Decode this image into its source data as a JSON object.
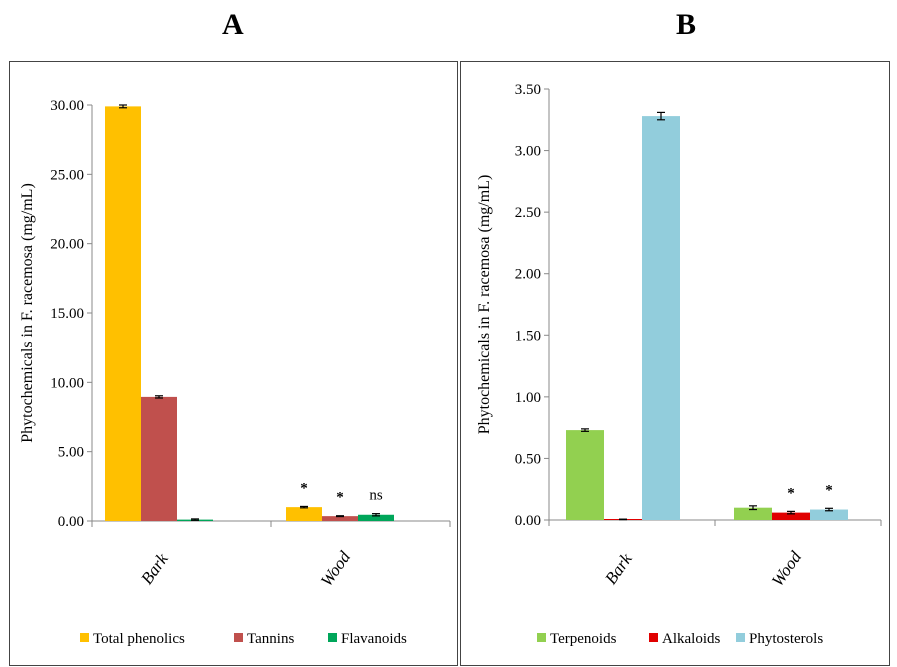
{
  "chart_data": [
    {
      "type": "bar",
      "panel_label": "A",
      "ylabel": "Phytochemicals  in  F. racemosa  (mg/mL)",
      "xlabel": "",
      "ylim": [
        0,
        30
      ],
      "yticks": [
        "0.00",
        "5.00",
        "10.00",
        "15.00",
        "20.00",
        "25.00",
        "30.00"
      ],
      "categories": [
        "Bark",
        "Wood"
      ],
      "legend_position": "bottom",
      "grid": false,
      "series": [
        {
          "name": "Total phenolics",
          "color": "#FFC000",
          "values": [
            29.9,
            1.0
          ],
          "errors": [
            0.1,
            0.05
          ],
          "marks": [
            "",
            "*"
          ]
        },
        {
          "name": "Tannins",
          "color": "#C0504D",
          "values": [
            8.95,
            0.35
          ],
          "errors": [
            0.08,
            0.03
          ],
          "marks": [
            "",
            "*"
          ]
        },
        {
          "name": "Flavanoids",
          "color": "#00A65A",
          "values": [
            0.1,
            0.45
          ],
          "errors": [
            0.05,
            0.08
          ],
          "marks": [
            "",
            "ns"
          ]
        }
      ]
    },
    {
      "type": "bar",
      "panel_label": "B",
      "ylabel": "Phytochemicals  in  F. racemosa  (mg/mL)",
      "xlabel": "",
      "ylim": [
        0,
        3.5
      ],
      "yticks": [
        "0.00",
        "0.50",
        "1.00",
        "1.50",
        "2.00",
        "2.50",
        "3.00",
        "3.50"
      ],
      "categories": [
        "Bark",
        "Wood"
      ],
      "legend_position": "bottom",
      "grid": false,
      "series": [
        {
          "name": "Terpenoids",
          "color": "#92D050",
          "values": [
            0.73,
            0.1
          ],
          "errors": [
            0.01,
            0.015
          ],
          "marks": [
            "",
            ""
          ]
        },
        {
          "name": "Alkaloids",
          "color": "#E00000",
          "values": [
            0.005,
            0.06
          ],
          "errors": [
            0.002,
            0.01
          ],
          "marks": [
            "",
            "*"
          ]
        },
        {
          "name": "Phytosterols",
          "color": "#92CDDC",
          "values": [
            3.28,
            0.085
          ],
          "errors": [
            0.03,
            0.01
          ],
          "marks": [
            "",
            "*"
          ]
        }
      ]
    }
  ]
}
